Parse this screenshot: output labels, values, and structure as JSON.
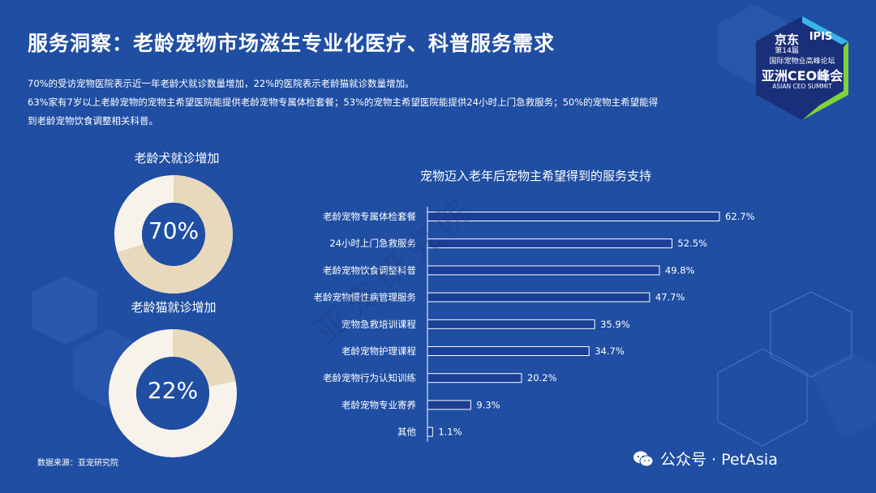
{
  "header": {
    "title": "服务洞察：老龄宠物市场滋生专业化医疗、科普服务需求"
  },
  "intro": {
    "line1": "70%的受访宠物医院表示近一年老龄犬就诊数量增加，22%的医院表示老龄猫就诊数量增加。",
    "line2": "63%家有7岁以上老龄宠物的宠物主希望医院能提供老龄宠物专属体检套餐；53%的宠物主希望医院能提供24小时上门急救服务；50%的宠物主希望能得",
    "line3": "到老龄宠物饮食调整相关科普。"
  },
  "donuts": [
    {
      "title": "老龄犬就诊增加",
      "value": 70,
      "label": "70%"
    },
    {
      "title": "老龄猫就诊增加",
      "value": 22,
      "label": "22%"
    }
  ],
  "chart_data": {
    "type": "bar",
    "orientation": "horizontal",
    "title": "宠物迈入老年后宠物主希望得到的服务支持",
    "categories": [
      "老龄宠物专属体检套餐",
      "24小时上门急救服务",
      "老龄宠物饮食调整科普",
      "老龄宠物慢性病管理服务",
      "宠物急救培训课程",
      "老龄宠物护理课程",
      "老龄宠物行为认知训练",
      "老龄宠物专业寄养",
      "其他"
    ],
    "values": [
      62.7,
      52.5,
      49.8,
      47.7,
      35.9,
      34.7,
      20.2,
      9.3,
      1.1
    ],
    "value_labels": [
      "62.7%",
      "52.5%",
      "49.8%",
      "47.7%",
      "35.9%",
      "34.7%",
      "20.2%",
      "9.3%",
      "1.1%"
    ],
    "bar_color": "#1b3f96",
    "bar_border": "#ffffff"
  },
  "footer": {
    "source": "数据来源：亚宠研究院",
    "wechat": "公众号 · PetAsia"
  },
  "watermark": "亚宠研究院",
  "logo": {
    "line1": "京东",
    "edition": "第14届",
    "brand": "IPIS",
    "line2": "国际宠物业高峰论坛",
    "line3": "亚洲CEO峰会",
    "line4": "ASIAN CEO SUMMIT"
  },
  "colors": {
    "background": "#1f4ea3",
    "donut_fill": "#e8d9bd",
    "donut_rest": "#f8f3ea",
    "logo_bg": "#1a2f7a",
    "logo_accent": "#7fd13b"
  }
}
